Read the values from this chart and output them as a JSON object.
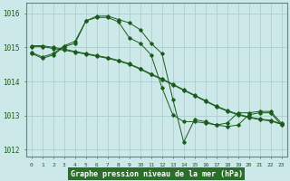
{
  "title": "Graphe pression niveau de la mer (hPa)",
  "background_color": "#cce8e8",
  "grid_color": "#aacfcf",
  "line_color": "#1a5c1a",
  "ylim": [
    1011.8,
    1016.3
  ],
  "yticks": [
    1012,
    1013,
    1014,
    1015,
    1016
  ],
  "x_ticks": [
    0,
    1,
    2,
    3,
    4,
    5,
    6,
    7,
    8,
    9,
    10,
    11,
    12,
    13,
    14,
    15,
    16,
    17,
    18,
    19,
    20,
    21,
    22,
    23
  ],
  "series_arch": [
    1014.85,
    1014.72,
    1014.82,
    1015.05,
    1015.18,
    1015.78,
    1015.88,
    1015.88,
    1015.75,
    1015.28,
    1015.12,
    1014.78,
    1013.82,
    1013.02,
    1012.82,
    1012.82,
    1012.78,
    1012.72,
    1012.78,
    1013.08,
    1013.08,
    1013.12,
    1013.12,
    1012.78
  ],
  "series_big_arch": [
    1014.82,
    1014.68,
    1014.78,
    1015.02,
    1015.12,
    1015.78,
    1015.92,
    1015.92,
    1015.82,
    1015.72,
    1015.52,
    1015.12,
    1014.82,
    1013.48,
    1012.22,
    1012.88,
    1012.82,
    1012.72,
    1012.68,
    1012.72,
    1013.02,
    1013.08,
    1013.08,
    1012.72
  ],
  "series_linear1": [
    1015.05,
    1015.05,
    1015.0,
    1014.95,
    1014.88,
    1014.82,
    1014.76,
    1014.7,
    1014.62,
    1014.52,
    1014.38,
    1014.22,
    1014.08,
    1013.92,
    1013.76,
    1013.6,
    1013.44,
    1013.28,
    1013.15,
    1013.04,
    1012.96,
    1012.9,
    1012.86,
    1012.76
  ],
  "series_linear2": [
    1015.02,
    1015.02,
    1014.97,
    1014.92,
    1014.86,
    1014.8,
    1014.74,
    1014.68,
    1014.6,
    1014.5,
    1014.36,
    1014.2,
    1014.06,
    1013.9,
    1013.74,
    1013.58,
    1013.42,
    1013.26,
    1013.13,
    1013.02,
    1012.94,
    1012.88,
    1012.84,
    1012.74
  ]
}
